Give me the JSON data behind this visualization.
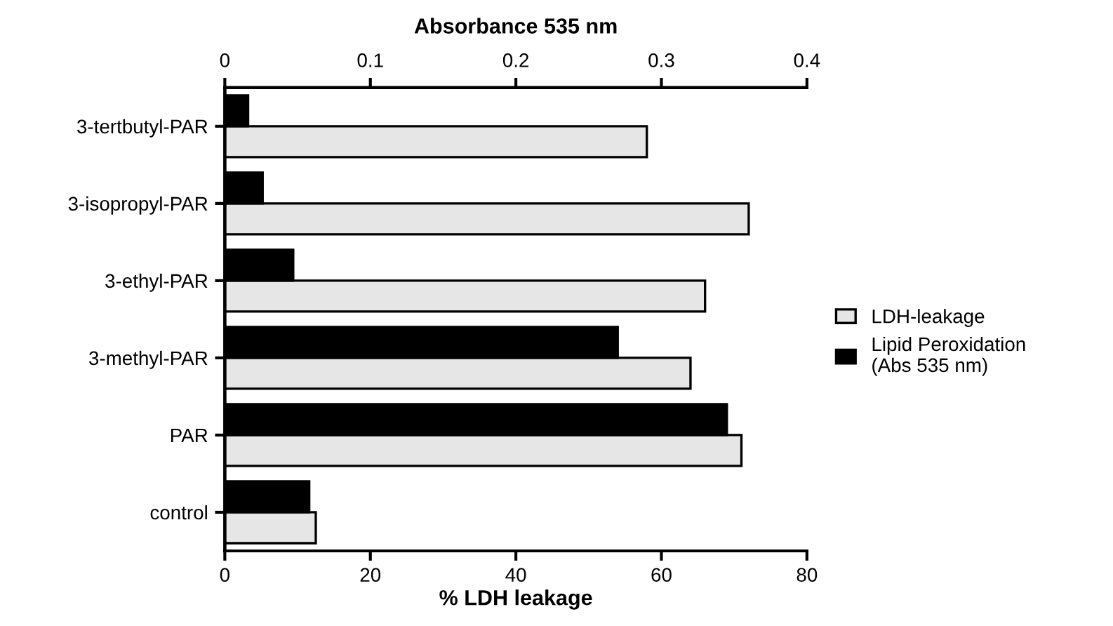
{
  "chart_data": {
    "type": "bar",
    "orientation": "horizontal",
    "categories": [
      "3-tertbutyl-PAR",
      "3-isopropyl-PAR",
      "3-ethyl-PAR",
      "3-methyl-PAR",
      "PAR",
      "control"
    ],
    "series": [
      {
        "name": "Lipid Peroxidation\n(Abs 535 nm)",
        "color": "#000000",
        "axis": "x2",
        "values": [
          0.016,
          0.026,
          0.047,
          0.27,
          0.345,
          0.058
        ]
      },
      {
        "name": "LDH-leakage",
        "color": "#e6e6e6",
        "values": [
          58,
          72,
          66,
          64,
          71,
          12.5
        ]
      }
    ],
    "xlabel": "% LDH leakage",
    "x2label": "Absorbance 535 nm",
    "xlim": [
      0,
      80
    ],
    "xticks": [
      0,
      20,
      40,
      60,
      80
    ],
    "x2lim": [
      0,
      0.4
    ],
    "x2ticks": [
      0,
      0.1,
      0.2,
      0.3,
      0.4
    ],
    "legend": "right",
    "grid": false
  }
}
